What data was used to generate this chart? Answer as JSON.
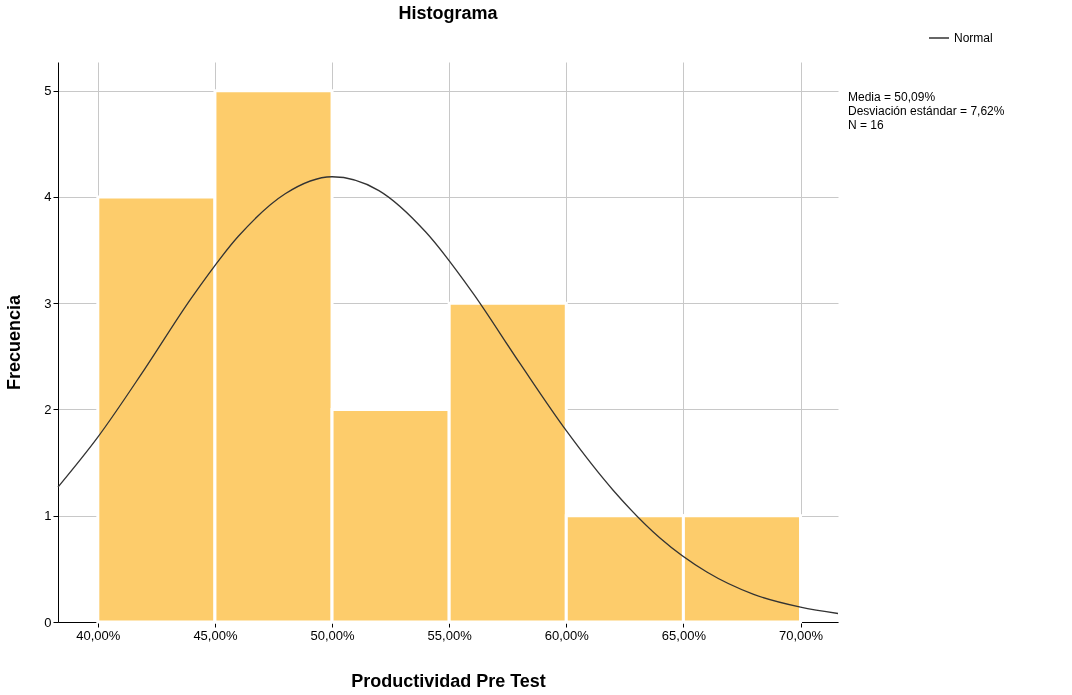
{
  "chart_data": {
    "type": "histogram",
    "title": "Histograma",
    "xlabel": "Productividad Pre Test",
    "ylabel": "Frecuencia",
    "bins": [
      40,
      45,
      50,
      55,
      60,
      65,
      70
    ],
    "values": [
      4,
      5,
      2,
      3,
      1,
      1
    ],
    "color": "#fdcc6b",
    "series": [
      {
        "type": "line",
        "name": "Normal",
        "color": "#333333",
        "x": [
          38.3,
          40,
          42,
          44,
          46,
          48,
          50,
          52,
          54,
          56,
          58,
          60,
          62,
          64,
          66,
          68,
          70,
          71.6
        ],
        "values": [
          1.27,
          1.74,
          2.38,
          3.05,
          3.63,
          4.03,
          4.19,
          4.06,
          3.67,
          3.1,
          2.44,
          1.8,
          1.24,
          0.79,
          0.47,
          0.26,
          0.14,
          0.08
        ]
      }
    ],
    "xlim": [
      38.3,
      71.6
    ],
    "ylim": [
      0,
      5.27
    ],
    "xticks": [
      {
        "value": 40,
        "label": "40,00%"
      },
      {
        "value": 45,
        "label": "45,00%"
      },
      {
        "value": 50,
        "label": "50,00%"
      },
      {
        "value": 55,
        "label": "55,00%"
      },
      {
        "value": 60,
        "label": "60,00%"
      },
      {
        "value": 65,
        "label": "65,00%"
      },
      {
        "value": 70,
        "label": "70,00%"
      }
    ],
    "yticks": [
      0,
      1,
      2,
      3,
      4,
      5
    ],
    "grid": true,
    "legend": "top right",
    "annotations": [
      "Media = 50,09%",
      "Desviación estándar = 7,62%",
      "N = 16"
    ]
  }
}
